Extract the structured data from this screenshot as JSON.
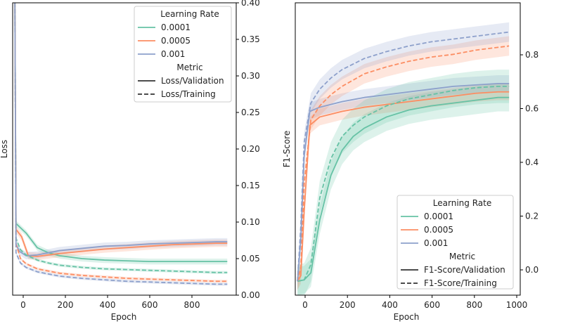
{
  "colors": {
    "0.0001": "#66c2a5",
    "0.0005": "#fc8d62",
    "0.001": "#8da0cb",
    "axis": "#000000"
  },
  "chart_data": [
    {
      "type": "line",
      "title": "",
      "xlabel": "Epoch",
      "ylabel": "Loss",
      "xlim": [
        -10,
        990
      ],
      "ylim": [
        0.0,
        0.4
      ],
      "x_ticks": [
        "0",
        "200",
        "400",
        "600",
        "800"
      ],
      "y_ticks": [
        "0.00",
        "0.05",
        "0.10",
        "0.15",
        "0.20",
        "0.25",
        "0.30",
        "0.35",
        "0.40"
      ],
      "y_axis_position": "right",
      "grid": false,
      "legend_position": "top-right",
      "legend": {
        "title1": "Learning Rate",
        "items1": [
          "0.0001",
          "0.0005",
          "0.001"
        ],
        "title2": "Metric",
        "items2": [
          "Loss/Validation",
          "Loss/Training"
        ]
      },
      "series": [
        {
          "lr": "0.0001",
          "metric": "Loss/Validation",
          "x": [
            0,
            5,
            50,
            100,
            150,
            200,
            300,
            400,
            500,
            600,
            700,
            800,
            900,
            950
          ],
          "y": [
            0.4,
            0.098,
            0.085,
            0.065,
            0.058,
            0.054,
            0.05,
            0.048,
            0.047,
            0.046,
            0.046,
            0.046,
            0.046,
            0.046
          ],
          "band": 0.004
        },
        {
          "lr": "0.0005",
          "metric": "Loss/Validation",
          "x": [
            0,
            5,
            30,
            60,
            100,
            150,
            200,
            300,
            400,
            500,
            600,
            700,
            800,
            900,
            950
          ],
          "y": [
            0.4,
            0.09,
            0.08,
            0.054,
            0.053,
            0.055,
            0.057,
            0.06,
            0.063,
            0.065,
            0.067,
            0.069,
            0.07,
            0.071,
            0.071
          ],
          "band": 0.005
        },
        {
          "lr": "0.001",
          "metric": "Loss/Validation",
          "x": [
            0,
            5,
            20,
            50,
            100,
            150,
            200,
            300,
            400,
            500,
            600,
            700,
            800,
            900,
            950
          ],
          "y": [
            0.4,
            0.07,
            0.06,
            0.054,
            0.055,
            0.058,
            0.061,
            0.064,
            0.067,
            0.068,
            0.07,
            0.071,
            0.072,
            0.073,
            0.073
          ],
          "band": 0.005
        },
        {
          "lr": "0.0001",
          "metric": "Loss/Training",
          "x": [
            0,
            5,
            25,
            50,
            100,
            150,
            200,
            300,
            400,
            500,
            600,
            700,
            800,
            900,
            950
          ],
          "y": [
            0.4,
            0.078,
            0.062,
            0.055,
            0.048,
            0.044,
            0.041,
            0.038,
            0.036,
            0.035,
            0.034,
            0.033,
            0.032,
            0.031,
            0.031
          ],
          "band": 0.002
        },
        {
          "lr": "0.0005",
          "metric": "Loss/Training",
          "x": [
            0,
            5,
            25,
            50,
            100,
            150,
            200,
            300,
            400,
            500,
            600,
            700,
            800,
            900,
            950
          ],
          "y": [
            0.4,
            0.07,
            0.05,
            0.043,
            0.036,
            0.033,
            0.03,
            0.027,
            0.025,
            0.023,
            0.022,
            0.021,
            0.02,
            0.019,
            0.019
          ],
          "band": 0.002
        },
        {
          "lr": "0.001",
          "metric": "Loss/Training",
          "x": [
            0,
            5,
            25,
            50,
            100,
            150,
            200,
            300,
            400,
            500,
            600,
            700,
            800,
            900,
            950
          ],
          "y": [
            0.4,
            0.058,
            0.044,
            0.038,
            0.032,
            0.029,
            0.026,
            0.023,
            0.021,
            0.019,
            0.018,
            0.017,
            0.016,
            0.015,
            0.015
          ],
          "band": 0.002
        }
      ]
    },
    {
      "type": "line",
      "title": "",
      "xlabel": "Epoch",
      "ylabel": "F1-Score",
      "xlim": [
        -10,
        1000
      ],
      "ylim": [
        -0.05,
        1.0
      ],
      "x_ticks": [
        "0",
        "200",
        "400",
        "600",
        "800",
        "1000"
      ],
      "y_ticks": [
        "0.0",
        "0.2",
        "0.4",
        "0.6",
        "0.8"
      ],
      "y_axis_position": "right",
      "grid": false,
      "legend_position": "lower-right",
      "legend": {
        "title1": "Learning Rate",
        "items1": [
          "0.0001",
          "0.0005",
          "0.001"
        ],
        "title2": "Metric",
        "items2": [
          "F1-Score/Validation",
          "F1-Score/Training"
        ]
      },
      "series": [
        {
          "lr": "0.0001",
          "metric": "F1-Score/Validation",
          "x": [
            0,
            30,
            60,
            100,
            150,
            200,
            250,
            300,
            400,
            500,
            600,
            700,
            800,
            900,
            950
          ],
          "y": [
            0.0,
            0.005,
            0.03,
            0.22,
            0.38,
            0.47,
            0.52,
            0.55,
            0.59,
            0.615,
            0.63,
            0.64,
            0.65,
            0.66,
            0.66
          ],
          "band": 0.05
        },
        {
          "lr": "0.0005",
          "metric": "F1-Score/Validation",
          "x": [
            0,
            15,
            30,
            55,
            100,
            150,
            200,
            300,
            400,
            500,
            600,
            700,
            800,
            900,
            950
          ],
          "y": [
            0.0,
            0.02,
            0.25,
            0.56,
            0.59,
            0.6,
            0.61,
            0.625,
            0.635,
            0.645,
            0.655,
            0.665,
            0.675,
            0.68,
            0.68
          ],
          "band": 0.03
        },
        {
          "lr": "0.001",
          "metric": "F1-Score/Validation",
          "x": [
            0,
            15,
            30,
            55,
            100,
            150,
            200,
            300,
            400,
            500,
            600,
            700,
            800,
            900,
            950
          ],
          "y": [
            0.0,
            0.15,
            0.45,
            0.61,
            0.625,
            0.635,
            0.645,
            0.66,
            0.67,
            0.68,
            0.69,
            0.7,
            0.705,
            0.71,
            0.71
          ],
          "band": 0.03
        },
        {
          "lr": "0.0001",
          "metric": "F1-Score/Training",
          "x": [
            0,
            30,
            60,
            100,
            150,
            200,
            250,
            300,
            400,
            500,
            600,
            700,
            800,
            900,
            950
          ],
          "y": [
            0.0,
            0.005,
            0.06,
            0.3,
            0.44,
            0.52,
            0.56,
            0.59,
            0.63,
            0.655,
            0.67,
            0.685,
            0.695,
            0.7,
            0.7
          ],
          "band": 0.06
        },
        {
          "lr": "0.0005",
          "metric": "F1-Score/Training",
          "x": [
            0,
            15,
            30,
            60,
            100,
            150,
            200,
            300,
            400,
            500,
            600,
            700,
            800,
            900,
            950
          ],
          "y": [
            0.0,
            0.05,
            0.35,
            0.58,
            0.63,
            0.67,
            0.7,
            0.745,
            0.77,
            0.79,
            0.805,
            0.815,
            0.83,
            0.84,
            0.845
          ],
          "band": 0.035
        },
        {
          "lr": "0.001",
          "metric": "F1-Score/Training",
          "x": [
            0,
            15,
            30,
            60,
            100,
            150,
            200,
            300,
            400,
            500,
            600,
            700,
            800,
            900,
            950
          ],
          "y": [
            0.0,
            0.2,
            0.5,
            0.64,
            0.69,
            0.73,
            0.76,
            0.8,
            0.825,
            0.845,
            0.86,
            0.87,
            0.88,
            0.89,
            0.895
          ],
          "band": 0.035
        }
      ]
    }
  ]
}
